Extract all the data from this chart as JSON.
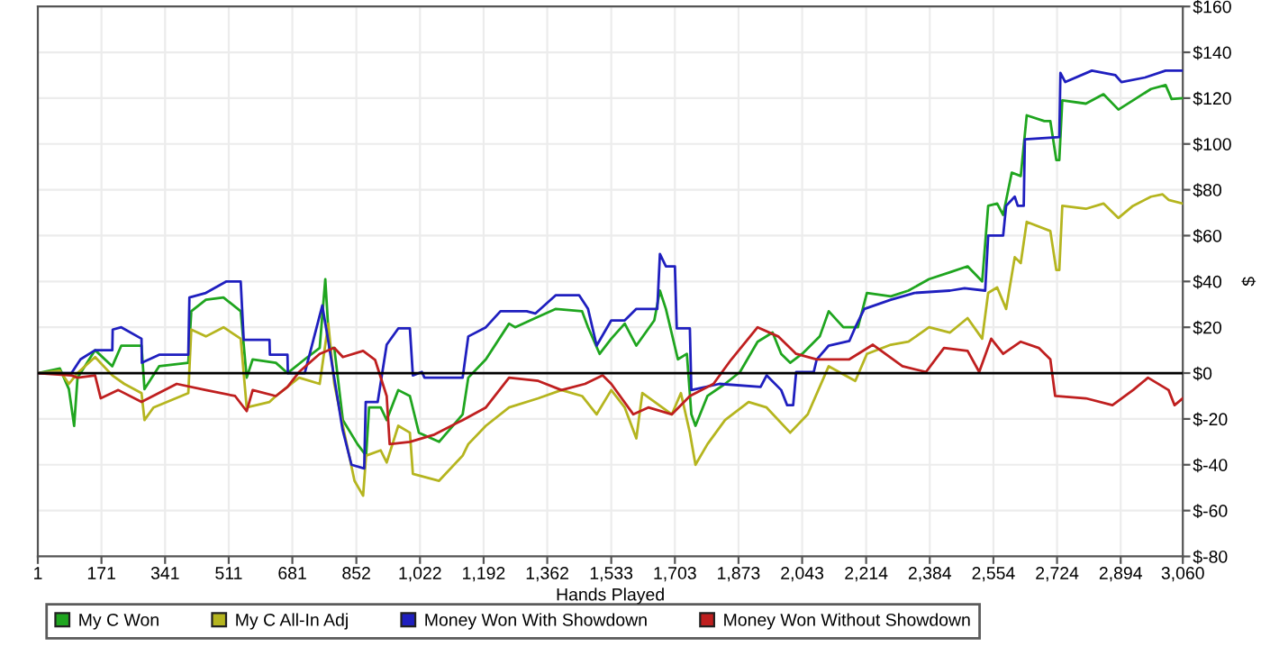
{
  "chart_data": {
    "type": "line",
    "xlabel": "Hands Played",
    "ylabel": "$",
    "xlim": [
      1,
      3060
    ],
    "ylim": [
      -80,
      160
    ],
    "xticks": [
      1,
      171,
      341,
      511,
      681,
      852,
      {
        "value": 1022,
        "label": "1,022"
      },
      {
        "value": 1192,
        "label": "1,192"
      },
      {
        "value": 1362,
        "label": "1,362"
      },
      {
        "value": 1533,
        "label": "1,533"
      },
      {
        "value": 1703,
        "label": "1,703"
      },
      {
        "value": 1873,
        "label": "1,873"
      },
      {
        "value": 2043,
        "label": "2,043"
      },
      {
        "value": 2214,
        "label": "2,214"
      },
      {
        "value": 2384,
        "label": "2,384"
      },
      {
        "value": 2554,
        "label": "2,554"
      },
      {
        "value": 2724,
        "label": "2,724"
      },
      {
        "value": 2894,
        "label": "2,894"
      },
      {
        "value": 3060,
        "label": "3,060"
      }
    ],
    "yticks": [
      {
        "value": -80,
        "label": "$-80"
      },
      {
        "value": -60,
        "label": "$-60"
      },
      {
        "value": -40,
        "label": "$-40"
      },
      {
        "value": -20,
        "label": "$-20"
      },
      {
        "value": 0,
        "label": "$0"
      },
      {
        "value": 20,
        "label": "$20"
      },
      {
        "value": 40,
        "label": "$40"
      },
      {
        "value": 60,
        "label": "$60"
      },
      {
        "value": 80,
        "label": "$80"
      },
      {
        "value": 100,
        "label": "$100"
      },
      {
        "value": 120,
        "label": "$120"
      },
      {
        "value": 140,
        "label": "$140"
      },
      {
        "value": 160,
        "label": "$160"
      }
    ],
    "grid": true,
    "legend": "bottom",
    "line_style": "solid",
    "ref_lines": [
      {
        "axis": "y",
        "value": 0,
        "color": "#000000"
      }
    ],
    "series": [
      {
        "name": "My C Won",
        "color": "#1fa51f",
        "x": [
          1,
          60,
          84,
          98,
          107,
          154,
          200,
          224,
          278,
          286,
          325,
          403,
          411,
          450,
          497,
          543,
          559,
          575,
          637,
          668,
          714,
          754,
          769,
          780,
          793,
          816,
          855,
          878,
          886,
          917,
          933,
          964,
          995,
          1019,
          1073,
          1136,
          1151,
          1198,
          1260,
          1276,
          1330,
          1385,
          1455,
          1471,
          1502,
          1533,
          1569,
          1600,
          1648,
          1663,
          1679,
          1711,
          1735,
          1747,
          1758,
          1790,
          1837,
          1877,
          1924,
          1964,
          1987,
          2011,
          2043,
          2090,
          2114,
          2153,
          2192,
          2216,
          2280,
          2327,
          2382,
          2438,
          2485,
          2524,
          2540,
          2564,
          2580,
          2603,
          2627,
          2643,
          2690,
          2706,
          2722,
          2730,
          2738,
          2801,
          2848,
          2888,
          2927,
          2975,
          3014,
          3030,
          3060
        ],
        "values": [
          0,
          2,
          -7,
          -23,
          -2,
          10,
          3,
          12,
          12,
          -7,
          3,
          4.5,
          27,
          32,
          33,
          27,
          -2,
          6,
          4.5,
          0,
          6,
          11,
          41,
          11,
          11,
          -20.5,
          -31,
          -36,
          -15,
          -15,
          -20.5,
          -7.4,
          -10,
          -26,
          -30,
          -18,
          -2,
          6,
          21.6,
          20,
          24,
          28,
          27,
          20,
          8.4,
          15,
          21.6,
          12,
          23,
          36,
          28,
          6,
          8.4,
          -18,
          -23,
          -10,
          -4.7,
          0.5,
          13.7,
          17.7,
          8.4,
          4.5,
          8.4,
          16,
          27,
          20,
          20,
          35,
          33.5,
          36,
          41,
          44,
          46.6,
          40,
          73,
          74,
          69,
          87.5,
          86,
          112.5,
          110,
          110,
          93,
          93,
          119,
          117.6,
          121.7,
          115,
          119,
          124,
          125.7,
          119.6,
          120
        ]
      },
      {
        "name": "My C All-In Adj",
        "color": "#b5b51f",
        "x": [
          1,
          60,
          84,
          107,
          154,
          200,
          232,
          278,
          286,
          310,
          403,
          411,
          450,
          497,
          543,
          559,
          620,
          637,
          699,
          754,
          777,
          793,
          816,
          847,
          870,
          878,
          917,
          933,
          964,
          995,
          1003,
          1073,
          1136,
          1151,
          1198,
          1260,
          1338,
          1400,
          1455,
          1494,
          1533,
          1569,
          1600,
          1616,
          1695,
          1719,
          1743,
          1758,
          1790,
          1837,
          1900,
          1948,
          2011,
          2058,
          2114,
          2185,
          2216,
          2280,
          2327,
          2382,
          2438,
          2485,
          2524,
          2540,
          2564,
          2588,
          2611,
          2627,
          2643,
          2706,
          2722,
          2730,
          2738,
          2801,
          2848,
          2888,
          2927,
          2975,
          3006,
          3022,
          3060
        ],
        "values": [
          0,
          1,
          -4.7,
          0,
          7,
          -1,
          -4.7,
          -8.7,
          -20.5,
          -15,
          -8.7,
          19,
          16,
          20,
          15,
          -15,
          -12.6,
          -10,
          -2,
          -4.7,
          21.6,
          -4.7,
          -23,
          -47,
          -53.5,
          -36,
          -33.7,
          -39,
          -23,
          -26,
          -44,
          -47,
          -36,
          -31,
          -23,
          -15,
          -11,
          -7.4,
          -10,
          -18,
          -7.4,
          -15,
          -28.5,
          -8.7,
          -18,
          -8.7,
          -26,
          -40,
          -31,
          -20.5,
          -12.6,
          -15,
          -26,
          -18,
          3,
          -3.4,
          8.4,
          12.4,
          13.7,
          20,
          17.7,
          24,
          15,
          35,
          37.4,
          28,
          50.6,
          48,
          66,
          62,
          45,
          45,
          73,
          71.7,
          74,
          67.7,
          73,
          77,
          78,
          75.6,
          74
        ]
      },
      {
        "name": "Money Won With Showdown",
        "color": "#1f1fbf",
        "x": [
          1,
          91,
          115,
          154,
          200,
          201,
          224,
          278,
          279,
          325,
          403,
          406,
          450,
          505,
          543,
          551,
          620,
          621,
          668,
          669,
          714,
          761,
          777,
          815,
          839,
          873,
          877,
          909,
          933,
          964,
          995,
          1003,
          1027,
          1034,
          1136,
          1151,
          1198,
          1237,
          1307,
          1330,
          1385,
          1447,
          1471,
          1494,
          1533,
          1569,
          1600,
          1656,
          1663,
          1679,
          1703,
          1708,
          1743,
          1747,
          1822,
          1932,
          1948,
          1987,
          2003,
          2019,
          2027,
          2074,
          2082,
          2114,
          2169,
          2185,
          2209,
          2280,
          2343,
          2438,
          2477,
          2532,
          2540,
          2580,
          2588,
          2611,
          2619,
          2635,
          2638,
          2730,
          2733,
          2746,
          2817,
          2880,
          2896,
          2959,
          3014,
          3060
        ],
        "values": [
          0,
          0,
          6,
          10,
          10,
          19,
          20,
          15,
          4.5,
          8,
          8,
          33,
          35,
          40,
          40,
          14.5,
          14.5,
          8,
          8,
          0,
          0,
          29.5,
          14,
          -24.5,
          -40,
          -41.6,
          -12.6,
          -12.6,
          12.4,
          19.5,
          19.5,
          -1,
          0.5,
          -2,
          -2,
          16,
          20,
          27,
          27,
          26,
          34,
          34,
          28,
          12,
          23,
          23,
          28,
          28,
          52,
          46.6,
          46.6,
          19.5,
          19.5,
          -7.4,
          -4.7,
          -6,
          -1,
          -7.4,
          -14,
          -14,
          0.5,
          0.5,
          6,
          12,
          14,
          20,
          28,
          32,
          35,
          36,
          37,
          36,
          60,
          60,
          73,
          77,
          73,
          73,
          102,
          103,
          131,
          127,
          132,
          130,
          127,
          129,
          132,
          132
        ]
      },
      {
        "name": "Money Won Without Showdown",
        "color": "#bf1f1f",
        "x": [
          1,
          91,
          107,
          154,
          169,
          216,
          278,
          372,
          450,
          528,
          559,
          575,
          637,
          668,
          699,
          754,
          793,
          816,
          870,
          902,
          933,
          941,
          995,
          1058,
          1136,
          1198,
          1260,
          1338,
          1400,
          1463,
          1510,
          1533,
          1592,
          1632,
          1695,
          1743,
          1806,
          1853,
          1924,
          1979,
          2027,
          2082,
          2169,
          2232,
          2311,
          2374,
          2422,
          2485,
          2516,
          2548,
          2580,
          2627,
          2675,
          2706,
          2719,
          2801,
          2872,
          2927,
          2967,
          3022,
          3038,
          3060
        ],
        "values": [
          0,
          -1,
          -2,
          -1,
          -11,
          -7.4,
          -12.6,
          -4.7,
          -7.4,
          -10,
          -16.6,
          -7.4,
          -10,
          -6,
          0.5,
          8.4,
          11,
          7,
          9.7,
          5.8,
          -10,
          -31,
          -30,
          -27,
          -20.5,
          -15,
          -2,
          -3.4,
          -7.4,
          -4.7,
          -1,
          -4.7,
          -18,
          -15,
          -18,
          -10,
          -4.7,
          5.8,
          20,
          16,
          8.4,
          6,
          6,
          12.4,
          3,
          0.5,
          11,
          9.7,
          0.5,
          15,
          8.4,
          13.7,
          11,
          6,
          -10,
          -11,
          -14,
          -7.4,
          -2,
          -7.4,
          -14,
          -11
        ]
      }
    ]
  }
}
